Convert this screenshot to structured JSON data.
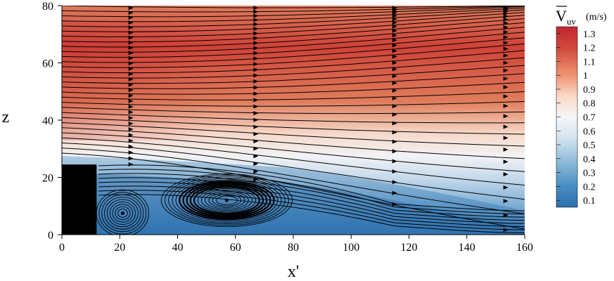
{
  "chart_data": {
    "type": "heatmap",
    "title": "",
    "xlabel": "x'",
    "ylabel": "z",
    "xlim": [
      0,
      160
    ],
    "ylim": [
      0,
      80
    ],
    "x_ticks": [
      "0",
      "20",
      "40",
      "60",
      "80",
      "100",
      "120",
      "140",
      "160"
    ],
    "y_ticks": [
      "0",
      "20",
      "40",
      "60",
      "80"
    ],
    "colorbar": {
      "title_main": "V",
      "title_sub": "uv",
      "unit": "(m/s)",
      "range": [
        0.05,
        1.35
      ],
      "ticks": [
        "0.1",
        "0.2",
        "0.3",
        "0.4",
        "0.5",
        "0.6",
        "0.7",
        "0.8",
        "0.9",
        "1",
        "1.1",
        "1.2",
        "1.3"
      ],
      "colors": [
        "#2c6fae",
        "#4a8fc2",
        "#8dbad9",
        "#dce8f1",
        "#f6f6f6",
        "#fae0d0",
        "#f1a384",
        "#dc6350",
        "#c2262e"
      ]
    },
    "obstacle": {
      "x": [
        0,
        12
      ],
      "z": [
        0,
        24.5
      ]
    },
    "vortices": [
      {
        "name": "",
        "center": [
          21,
          7.5
        ]
      },
      {
        "name": "",
        "center": [
          57,
          12
        ]
      }
    ]
  }
}
